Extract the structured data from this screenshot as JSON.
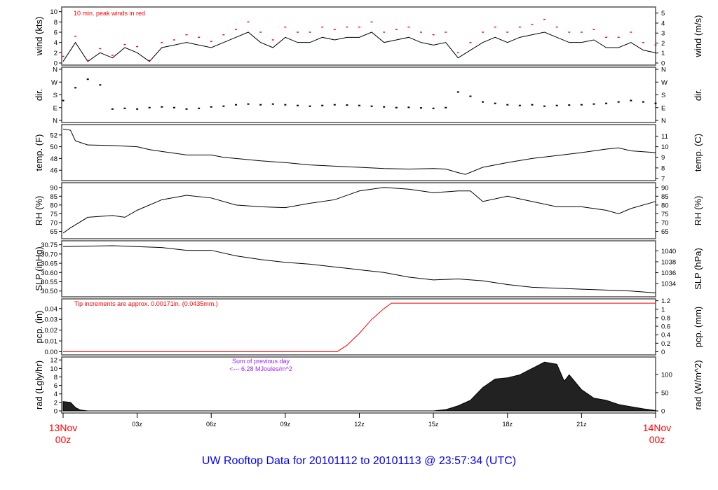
{
  "title": "UW Rooftop Data for 20101112  to  20101113 @ 23:57:34  (UTC)",
  "colors": {
    "line": "#000000",
    "peak": "#ff0000",
    "pcp": "#ff0000",
    "annot_red": "#ff0000",
    "annot_purple": "#a020f0",
    "title": "#0000ff",
    "date": "#ff0000"
  },
  "x_axis": {
    "range_hours": [
      0,
      24
    ],
    "ticks": [
      {
        "h": 0,
        "label": ""
      },
      {
        "h": 3,
        "label": "03z"
      },
      {
        "h": 6,
        "label": "06z"
      },
      {
        "h": 9,
        "label": "09z"
      },
      {
        "h": 12,
        "label": "12z"
      },
      {
        "h": 15,
        "label": "15z"
      },
      {
        "h": 18,
        "label": "18z"
      },
      {
        "h": 21,
        "label": "21z"
      },
      {
        "h": 24,
        "label": ""
      }
    ],
    "start": {
      "line1": "13Nov",
      "line2": "00z"
    },
    "end": {
      "line1": "14Nov",
      "line2": "00z"
    }
  },
  "chart_data": [
    {
      "id": "wind",
      "type": "line",
      "ylabel": "wind (kts)",
      "ylabel_right": "wind (m/s)",
      "ylim": [
        0,
        10.5
      ],
      "yticks": [
        0,
        2,
        4,
        6,
        8,
        10
      ],
      "right_ticks": [
        {
          "v": 0,
          "label": "0"
        },
        {
          "v": 1.944,
          "label": "1"
        },
        {
          "v": 3.888,
          "label": "2"
        },
        {
          "v": 5.832,
          "label": "3"
        },
        {
          "v": 7.776,
          "label": "4"
        },
        {
          "v": 9.72,
          "label": "5"
        }
      ],
      "annotation": "10 min. peak winds in red",
      "x": [
        0,
        0.5,
        1,
        1.5,
        2,
        2.5,
        3,
        3.5,
        4,
        4.5,
        5,
        5.5,
        6,
        6.5,
        7,
        7.5,
        8,
        8.5,
        9,
        9.5,
        10,
        10.5,
        11,
        11.5,
        12,
        12.5,
        13,
        13.5,
        14,
        14.5,
        15,
        15.5,
        16,
        16.5,
        17,
        17.5,
        18,
        18.5,
        19,
        19.5,
        20,
        20.5,
        21,
        21.5,
        22,
        22.5,
        23,
        23.5,
        24
      ],
      "values": [
        0.3,
        4,
        0.3,
        2,
        1,
        3,
        2,
        0.3,
        3,
        3.5,
        4,
        3.5,
        3,
        4,
        5,
        6,
        4,
        3,
        5,
        4,
        4,
        5,
        4.5,
        5,
        5,
        6,
        4,
        4.5,
        5,
        4,
        3.5,
        4,
        1,
        2.5,
        4,
        5,
        4,
        5,
        5.5,
        6,
        5,
        4,
        4,
        4.5,
        3,
        3,
        4,
        2.5,
        2
      ],
      "peaks": [
        1.3,
        5.2,
        0.5,
        2.8,
        1.5,
        3.6,
        3.2,
        0.5,
        4,
        4.5,
        5.5,
        5,
        4.2,
        5.5,
        6.5,
        8,
        6,
        4.5,
        7,
        6,
        6,
        7,
        6.5,
        7,
        7,
        8,
        6,
        6.5,
        7,
        6,
        5.5,
        6,
        2,
        4,
        6,
        7,
        6,
        7,
        7.5,
        8.5,
        7,
        6,
        6,
        6.5,
        5,
        5,
        6,
        4,
        3.5
      ]
    },
    {
      "id": "dir",
      "type": "scatter",
      "ylabel": "dir.",
      "ylabel_right": "dir.",
      "ylim": [
        0,
        360
      ],
      "yticks": [
        {
          "v": 0,
          "label": "N"
        },
        {
          "v": 90,
          "label": "E"
        },
        {
          "v": 180,
          "label": "S"
        },
        {
          "v": 270,
          "label": "W"
        },
        {
          "v": 360,
          "label": "N"
        }
      ],
      "x": [
        0,
        0.5,
        1,
        1.5,
        2,
        2.5,
        3,
        3.5,
        4,
        4.5,
        5,
        5.5,
        6,
        6.5,
        7,
        7.5,
        8,
        8.5,
        9,
        9.5,
        10,
        10.5,
        11,
        11.5,
        12,
        12.5,
        13,
        13.5,
        14,
        14.5,
        15,
        15.5,
        16,
        16.5,
        17,
        17.5,
        18,
        18.5,
        19,
        19.5,
        20,
        20.5,
        21,
        21.5,
        22,
        22.5,
        23,
        23.5,
        24
      ],
      "values": [
        140,
        230,
        290,
        250,
        80,
        85,
        80,
        90,
        95,
        90,
        80,
        85,
        95,
        100,
        110,
        115,
        110,
        115,
        110,
        105,
        100,
        105,
        110,
        108,
        105,
        100,
        95,
        90,
        92,
        88,
        85,
        90,
        200,
        170,
        130,
        120,
        110,
        105,
        110,
        100,
        105,
        108,
        110,
        115,
        120,
        130,
        140,
        130,
        120
      ]
    },
    {
      "id": "temp",
      "type": "line",
      "ylabel": "temp. (F)",
      "ylabel_right": "temp. (C)",
      "ylim": [
        44.6,
        53.4
      ],
      "yticks": [
        46,
        48,
        50,
        52
      ],
      "right_ticks": [
        {
          "v": 44.6,
          "label": "7"
        },
        {
          "v": 46.4,
          "label": "8"
        },
        {
          "v": 48.2,
          "label": "9"
        },
        {
          "v": 50,
          "label": "10"
        },
        {
          "v": 51.8,
          "label": "11"
        }
      ],
      "x": [
        0,
        0.3,
        0.5,
        1,
        2,
        3,
        3.5,
        4,
        5,
        6,
        6.5,
        7,
        8,
        9,
        10,
        11,
        12,
        13,
        14,
        15,
        15.5,
        16,
        16.3,
        17,
        18,
        19,
        20,
        21,
        22,
        22.5,
        23,
        24
      ],
      "values": [
        53,
        52.8,
        51,
        50.3,
        50.2,
        50,
        49.5,
        49.2,
        48.6,
        48.6,
        48.2,
        48,
        47.6,
        47.3,
        46.9,
        46.7,
        46.5,
        46.3,
        46.2,
        46.3,
        46.2,
        45.6,
        45.3,
        46.5,
        47.3,
        48,
        48.5,
        49,
        49.6,
        49.8,
        49.3,
        49
      ]
    },
    {
      "id": "rh",
      "type": "line",
      "ylabel": "RH (%)",
      "ylabel_right": "RH (%)",
      "ylim": [
        62,
        91.5
      ],
      "yticks": [
        65,
        70,
        75,
        80,
        85,
        90
      ],
      "right_ticks": [
        {
          "v": 65,
          "label": "65"
        },
        {
          "v": 70,
          "label": "70"
        },
        {
          "v": 75,
          "label": "75"
        },
        {
          "v": 80,
          "label": "80"
        },
        {
          "v": 85,
          "label": "85"
        },
        {
          "v": 90,
          "label": "90"
        }
      ],
      "x": [
        0,
        0.3,
        1,
        2,
        2.5,
        3,
        4,
        5,
        6,
        7,
        8,
        9,
        10,
        11,
        12,
        13,
        14,
        15,
        16,
        16.5,
        17,
        18,
        19,
        20,
        21,
        22,
        22.5,
        23,
        24
      ],
      "values": [
        64,
        67,
        73,
        74,
        73,
        77,
        83,
        85.5,
        84,
        80,
        79,
        78.5,
        81,
        83,
        88,
        90,
        89,
        87,
        88,
        88,
        82,
        85,
        82,
        79,
        79,
        77,
        75,
        78,
        82
      ]
    },
    {
      "id": "slp",
      "type": "line",
      "ylabel": "SLP (inHg)",
      "ylabel_right": "SLP (hPa)",
      "ylim": [
        30.48,
        30.76
      ],
      "yticks": [
        30.5,
        30.55,
        30.6,
        30.65,
        30.7,
        30.75
      ],
      "right_ticks": [
        {
          "v": 30.54,
          "label": "1034"
        },
        {
          "v": 30.599,
          "label": "1036"
        },
        {
          "v": 30.658,
          "label": "1038"
        },
        {
          "v": 30.717,
          "label": "1040"
        }
      ],
      "x": [
        0,
        2,
        4,
        5,
        6,
        7,
        8,
        9,
        10,
        11,
        12,
        13,
        14,
        15,
        16,
        17,
        18,
        19,
        20,
        21,
        22,
        23,
        24
      ],
      "values": [
        30.74,
        30.745,
        30.735,
        30.72,
        30.72,
        30.69,
        30.67,
        30.655,
        30.645,
        30.63,
        30.615,
        30.6,
        30.575,
        30.56,
        30.565,
        30.555,
        30.535,
        30.52,
        30.515,
        30.51,
        30.505,
        30.5,
        30.49
      ]
    },
    {
      "id": "pcp",
      "type": "line",
      "ylabel": "pcp. (in)",
      "ylabel_right": "pcp. (mm)",
      "ylim": [
        -0.001,
        0.047
      ],
      "yticks": [
        0,
        0.01,
        0.02,
        0.03,
        0.04
      ],
      "right_ticks": [
        {
          "v": 0,
          "label": "0"
        },
        {
          "v": 0.00787,
          "label": "0.2"
        },
        {
          "v": 0.01575,
          "label": "0.4"
        },
        {
          "v": 0.02362,
          "label": "0.6"
        },
        {
          "v": 0.0315,
          "label": "0.8"
        },
        {
          "v": 0.03937,
          "label": "1"
        },
        {
          "v": 0.04724,
          "label": "1.2"
        }
      ],
      "annotation": "Tip increments are approx. 0.00171in. (0.0435mm.)",
      "x": [
        0,
        11.1,
        11.5,
        12,
        12.5,
        13,
        13.3,
        24
      ],
      "values": [
        0,
        0,
        0.006,
        0.017,
        0.03,
        0.04,
        0.045,
        0.045
      ]
    },
    {
      "id": "rad",
      "type": "area",
      "ylabel": "rad (Lgly/hr)",
      "ylabel_right": "rad (W/m^2)",
      "ylim": [
        0,
        12.2
      ],
      "yticks": [
        0,
        2,
        4,
        6,
        8,
        10,
        12
      ],
      "right_ticks": [
        {
          "v": 0,
          "label": "0"
        },
        {
          "v": 4.3,
          "label": "50"
        },
        {
          "v": 8.6,
          "label": "100"
        }
      ],
      "annotation": {
        "line1": "Sum of previous day",
        "line2": "<--- 6.28 MJoules/m^2"
      },
      "x": [
        0,
        0.3,
        0.5,
        0.7,
        1,
        15,
        15.5,
        16,
        16.5,
        17,
        17.5,
        18,
        18.5,
        19,
        19.5,
        20,
        20.3,
        20.5,
        21,
        21.5,
        22,
        22.5,
        23,
        23.5,
        24
      ],
      "values": [
        2.2,
        2,
        0.8,
        0.2,
        0,
        0,
        0.3,
        1.2,
        2.5,
        5.5,
        7.5,
        7.8,
        8.5,
        10,
        11.5,
        11,
        7,
        8.5,
        5,
        3,
        2.5,
        1.5,
        1,
        0.5,
        0.1
      ]
    }
  ]
}
